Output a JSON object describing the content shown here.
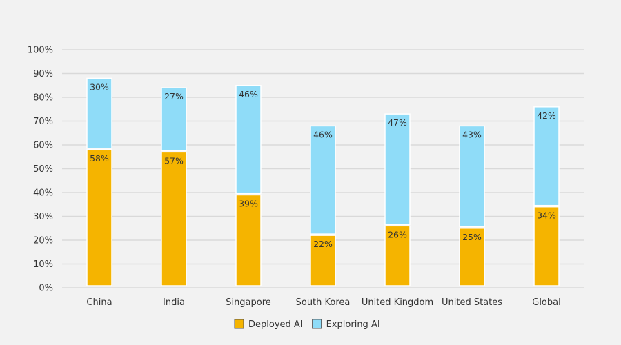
{
  "chart_data": {
    "type": "bar",
    "stacked": true,
    "categories": [
      "China",
      "India",
      "Singapore",
      "South Korea",
      "United Kingdom",
      "United States",
      "Global"
    ],
    "series": [
      {
        "name": "Deployed AI",
        "values": [
          58,
          57,
          39,
          22,
          26,
          25,
          34
        ],
        "color": "#f5b400"
      },
      {
        "name": "Exploring AI",
        "values": [
          30,
          27,
          46,
          46,
          47,
          43,
          42
        ],
        "color": "#8fdcf8"
      }
    ],
    "ylim": [
      0,
      100
    ],
    "yticks": [
      "0%",
      "10%",
      "20%",
      "30%",
      "40%",
      "50%",
      "60%",
      "70%",
      "80%",
      "90%",
      "100%"
    ],
    "value_suffix": "%",
    "grid": true,
    "legend": "bottom"
  }
}
